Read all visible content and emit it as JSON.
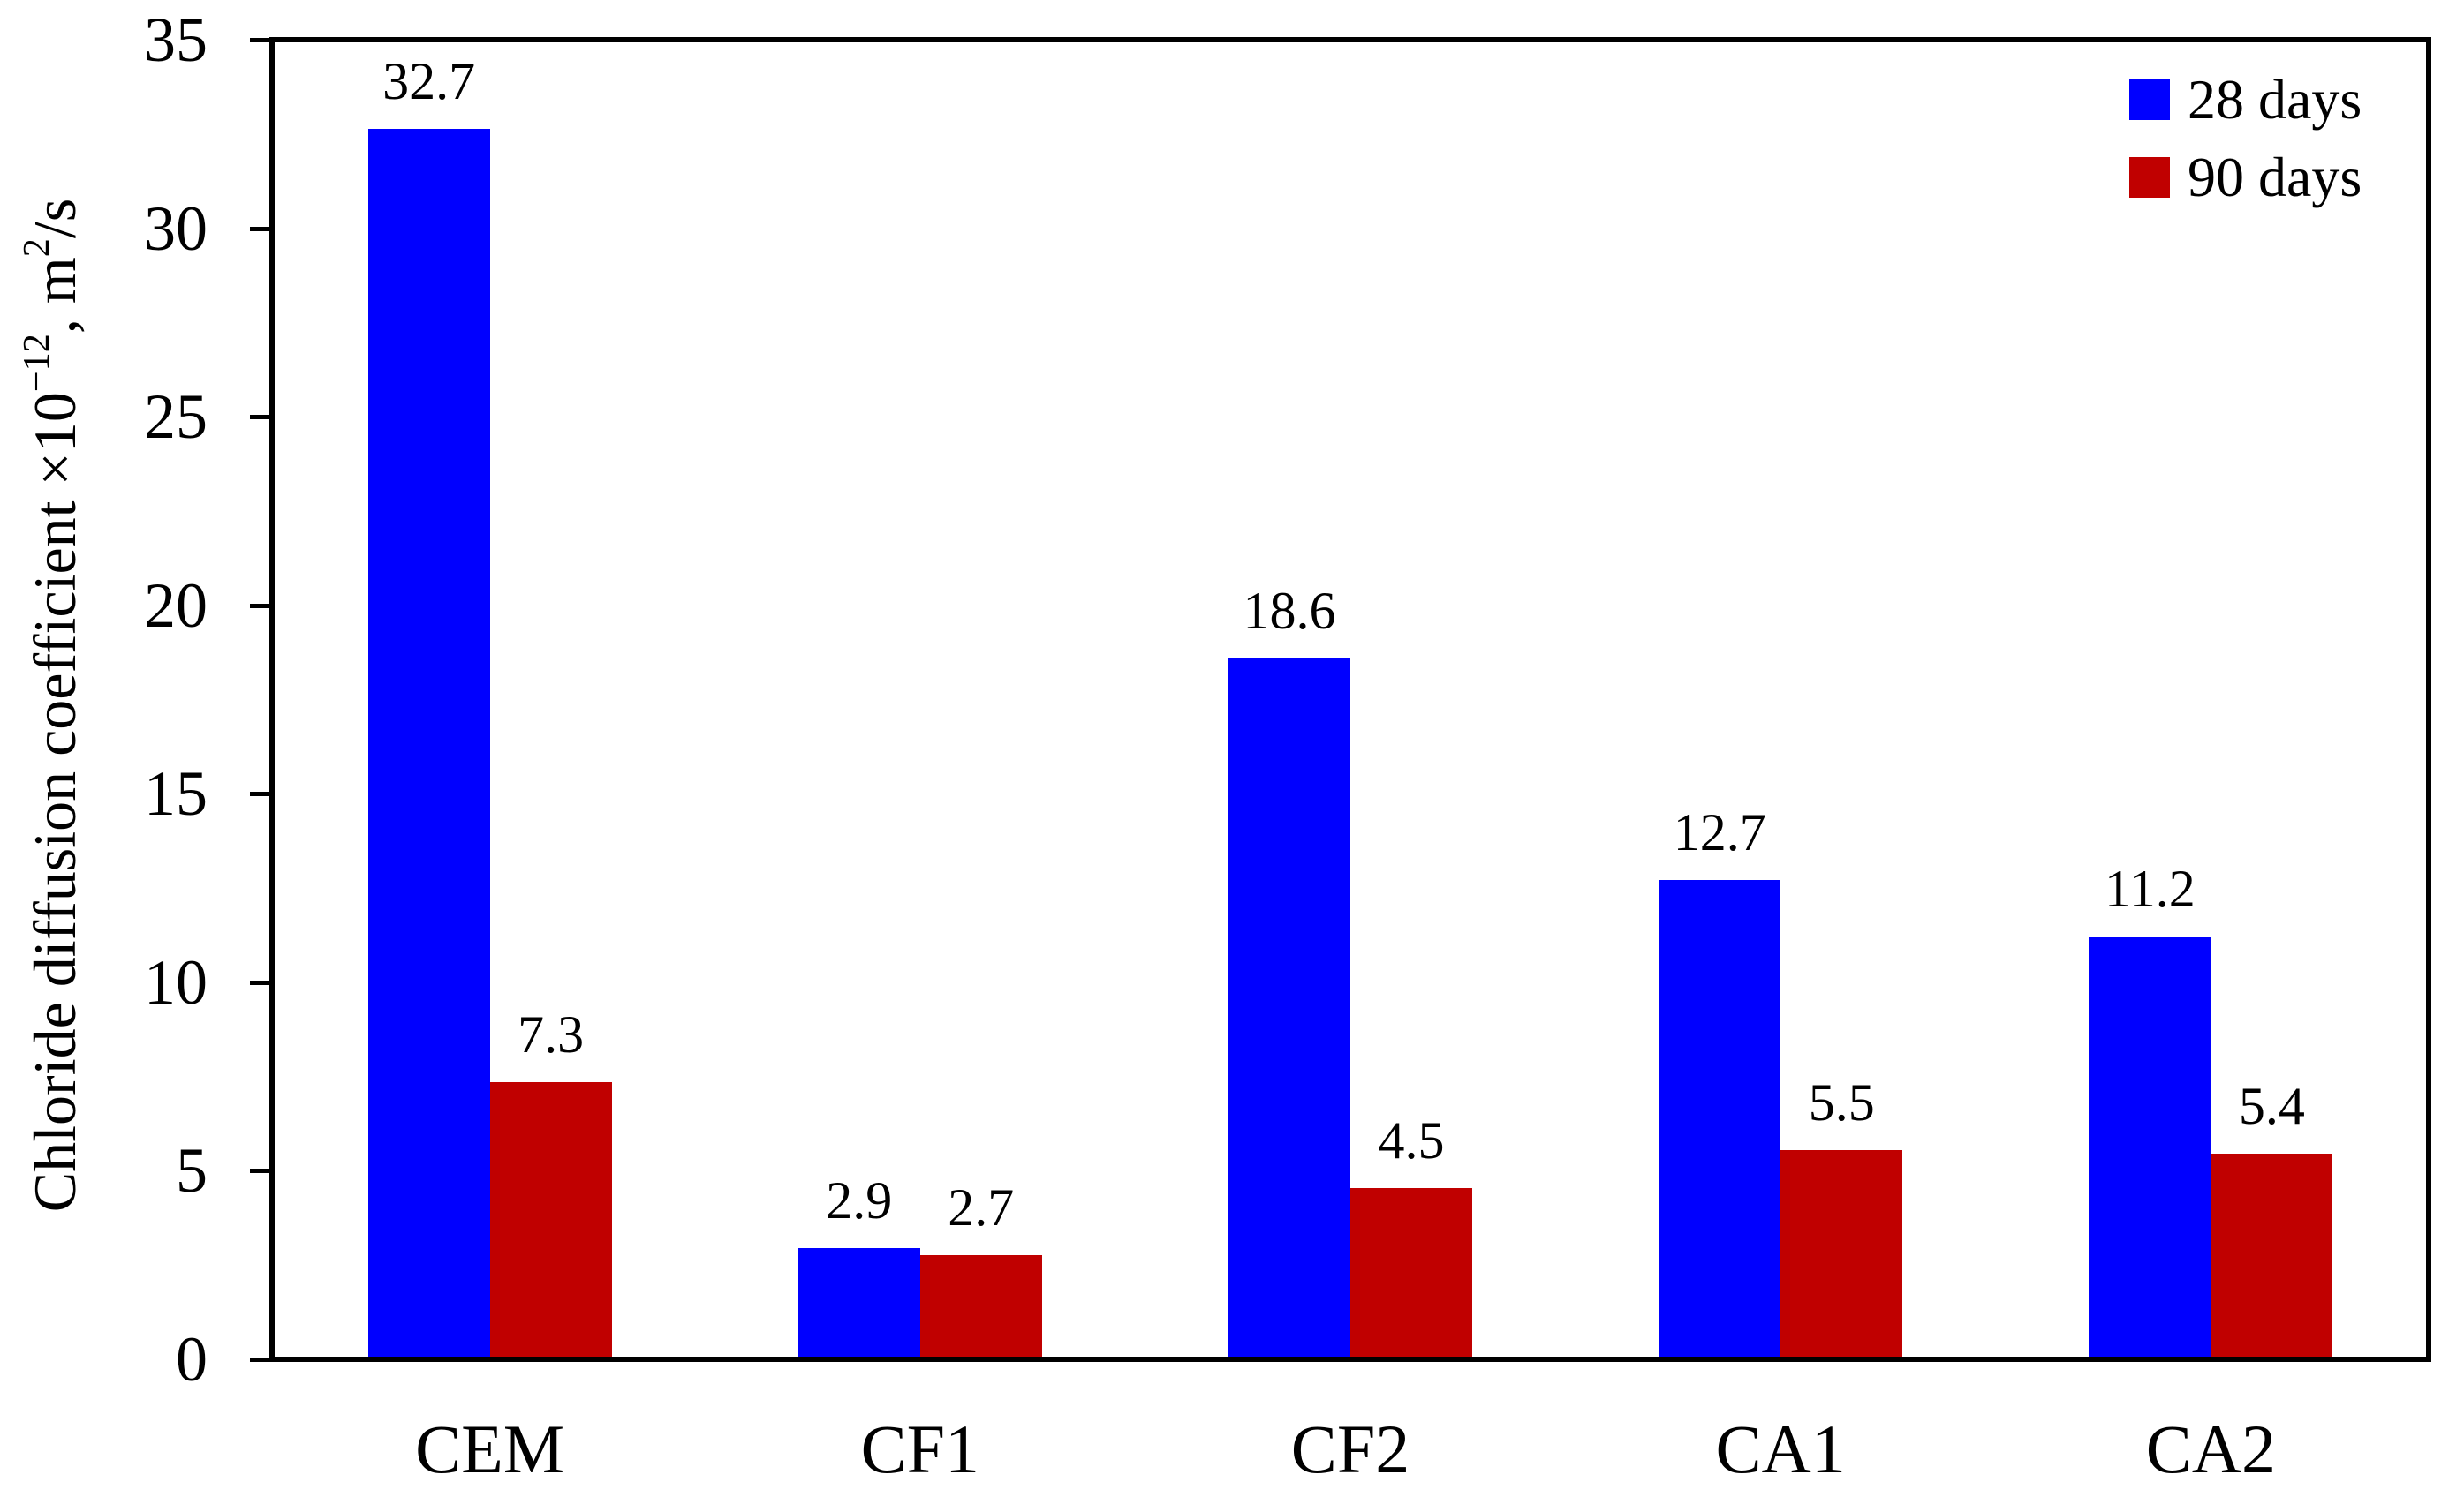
{
  "chart_data": {
    "type": "bar",
    "title": "",
    "categories": [
      "CEM",
      "CF1",
      "CF2",
      "CA1",
      "CA2"
    ],
    "series": [
      {
        "name": "28 days",
        "color": "#0000FF",
        "values": [
          32.7,
          2.9,
          18.6,
          12.7,
          11.2
        ]
      },
      {
        "name": "90 days",
        "color": "#C00000",
        "values": [
          7.3,
          2.7,
          4.5,
          5.5,
          5.4
        ]
      }
    ],
    "value_labels": [
      [
        "32.7",
        "2.9",
        "18.6",
        "12.7",
        "11.2"
      ],
      [
        "7.3",
        "2.7",
        "4.5",
        "5.5",
        "5.4"
      ]
    ],
    "xlabel": "",
    "ylabel": "Chloride diffusion coefficient ×10−12, m²/s",
    "ylim": [
      0,
      35
    ],
    "ytick_step": 5,
    "ytick_labels": [
      "0",
      "5",
      "10",
      "15",
      "20",
      "25",
      "30",
      "35"
    ],
    "grid": false,
    "legend_position": "top-right-inside",
    "frame": true,
    "axis_color": "#000000"
  },
  "axes": {
    "ylabel_parts": {
      "prefix": "Chloride diffusion coefficient ×10",
      "exp": "−12",
      "mid": ", m",
      "sup": "2",
      "suffix": "/s"
    }
  }
}
